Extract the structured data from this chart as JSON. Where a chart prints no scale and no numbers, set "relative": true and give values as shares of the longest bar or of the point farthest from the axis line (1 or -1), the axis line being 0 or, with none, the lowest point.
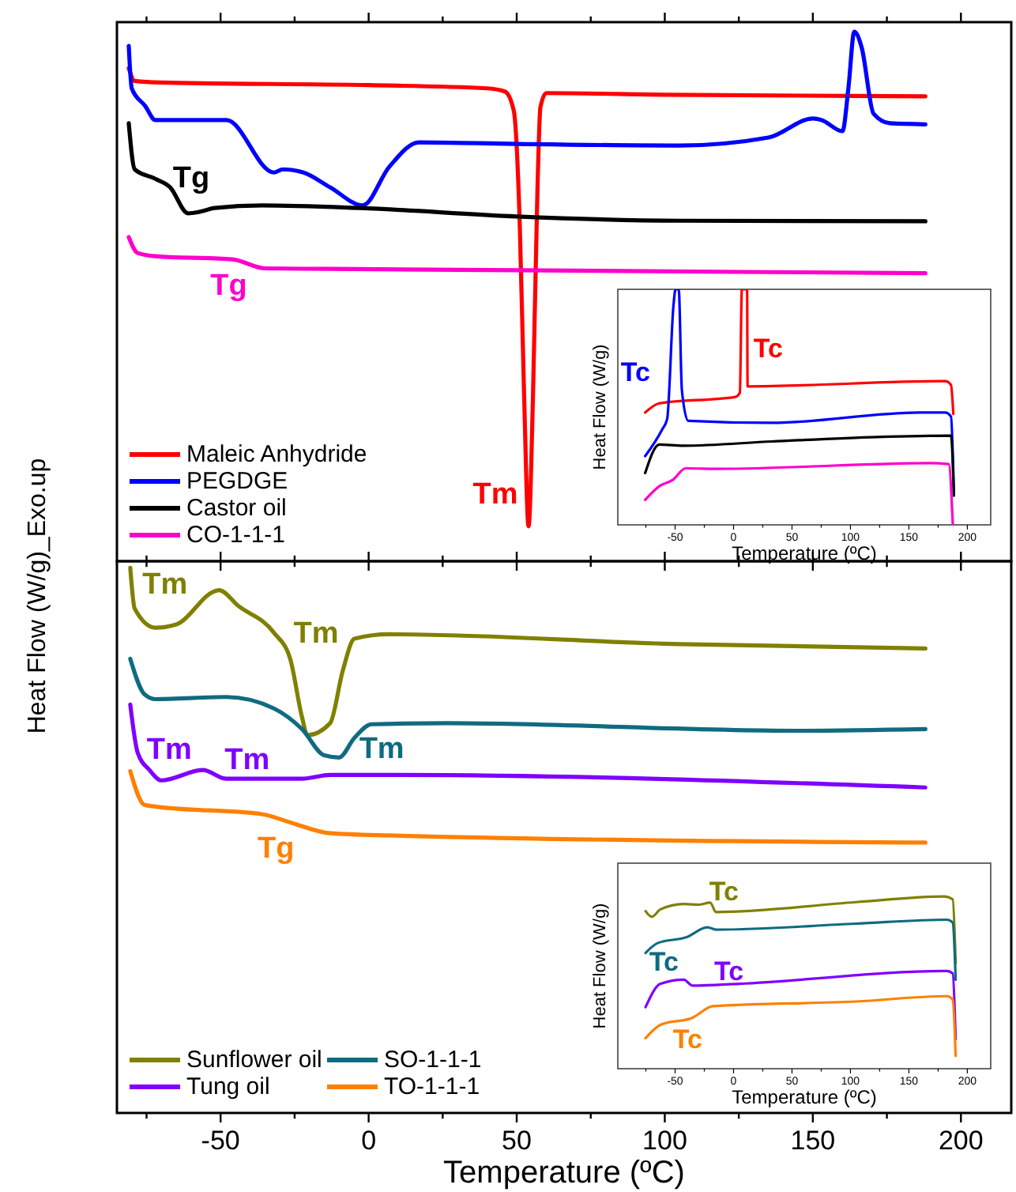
{
  "chart_data": [
    {
      "type": "line",
      "ylabel": "Heat Flow (W/g)_Exo.up",
      "relative": true,
      "xlim": [
        -85,
        217
      ],
      "xticks": [
        -50,
        0,
        50,
        100,
        150,
        200,
        {
          "value": -75,
          "label": null
        },
        {
          "value": -25,
          "label": null
        },
        {
          "value": 25,
          "label": null
        },
        {
          "value": 75,
          "label": null
        },
        {
          "value": 125,
          "label": null
        },
        {
          "value": 175,
          "label": null
        }
      ],
      "tick_labels": false,
      "legend": "bottom left",
      "series": [
        {
          "name": "Maleic Anhydride",
          "color": "#ff0000",
          "x": [
            -81,
            -79,
            -70,
            0,
            40,
            46,
            49,
            51,
            52.5,
            54,
            55.5,
            57,
            58,
            60,
            100,
            188
          ],
          "values": [
            0.931,
            0.907,
            0.904,
            0.899,
            0.893,
            0.887,
            0.851,
            0.642,
            0.313,
            0.066,
            0.313,
            0.701,
            0.857,
            0.884,
            0.881,
            0.878
          ]
        },
        {
          "name": "PEGDGE",
          "color": "#0000ff",
          "x": [
            -81,
            -80,
            -75.5,
            -72,
            -48,
            -32,
            -29,
            -22,
            -13,
            -2,
            7,
            17,
            50,
            105,
            135,
            150,
            153,
            160,
            162,
            164,
            166.5,
            170.5,
            176,
            188
          ],
          "values": [
            0.973,
            0.893,
            0.86,
            0.833,
            0.833,
            0.734,
            0.74,
            0.734,
            0.706,
            0.672,
            0.745,
            0.791,
            0.788,
            0.785,
            0.8,
            0.836,
            0.833,
            0.812,
            0.893,
            1.0,
            0.97,
            0.845,
            0.827,
            0.825
          ]
        },
        {
          "name": "Castor oil",
          "color": "#000000",
          "x": [
            -81,
            -79,
            -72,
            -67,
            -61,
            -57,
            -52,
            -36,
            -3,
            50,
            105,
            188
          ],
          "values": [
            0.827,
            0.74,
            0.722,
            0.706,
            0.657,
            0.66,
            0.667,
            0.672,
            0.667,
            0.651,
            0.643,
            0.642
          ]
        },
        {
          "name": "CO-1-1-1",
          "color": "#ff00cc",
          "x": [
            -81,
            -78,
            -72,
            -46,
            -35,
            -13,
            188
          ],
          "values": [
            0.612,
            0.582,
            0.576,
            0.57,
            0.553,
            0.552,
            0.544
          ]
        }
      ],
      "annotations": [
        {
          "text": "Tg",
          "x": -61,
          "y": 0.657
        },
        {
          "text": "Tg",
          "x": -35,
          "y": 0.553
        },
        {
          "text": "Tm",
          "x": 54,
          "y": 0.066
        }
      ]
    },
    {
      "type": "line",
      "xlabel": "Temperature (ºC)",
      "ylabel": "Heat Flow (W/g)",
      "relative": true,
      "xlim": [
        -99,
        220
      ],
      "xticks": [
        -50,
        0,
        50,
        100,
        150,
        200,
        {
          "value": -75,
          "label": null
        },
        {
          "value": -25,
          "label": null
        },
        {
          "value": 25,
          "label": null
        },
        {
          "value": 75,
          "label": null
        },
        {
          "value": 125,
          "label": null
        },
        {
          "value": 175,
          "label": null
        }
      ],
      "tick_labels": "x",
      "series": [
        {
          "color": "#ff0000",
          "x": [
            -75.6,
            -63.5,
            1.7,
            5.4,
            7.1,
            11.6,
            12,
            181,
            186,
            188
          ],
          "values": [
            0.477,
            0.516,
            0.543,
            0.561,
            1.0,
            1.0,
            0.588,
            0.61,
            0.594,
            0.471
          ]
        },
        {
          "color": "#0000ff",
          "x": [
            -75.6,
            -61.3,
            -56.8,
            -51.4,
            -49.6,
            -46.9,
            -44.2,
            -38.8,
            33,
            159,
            181,
            186,
            188.5
          ],
          "values": [
            0.292,
            0.403,
            0.449,
            0.931,
            1.0,
            1.0,
            0.572,
            0.442,
            0.433,
            0.477,
            0.477,
            0.46,
            0.134
          ]
        },
        {
          "color": "#000000",
          "x": [
            -75.6,
            -63.5,
            -43,
            33,
            123,
            186,
            188.5
          ],
          "values": [
            0.22,
            0.341,
            0.336,
            0.354,
            0.373,
            0.379,
            0.124
          ]
        },
        {
          "color": "#ff00cc",
          "x": [
            -75.6,
            -63.5,
            -52,
            -41,
            -11.7,
            168,
            184,
            187.6
          ],
          "values": [
            0.106,
            0.164,
            0.191,
            0.24,
            0.238,
            0.262,
            0.258,
            0
          ]
        }
      ],
      "annotations": [
        {
          "text": "Tc",
          "x": -51.4,
          "y": 0.931
        },
        {
          "text": "Tc",
          "x": 12,
          "y": 0.588
        }
      ]
    },
    {
      "type": "line",
      "xlabel": "Temperature (ºC)",
      "relative": true,
      "xlim": [
        -85,
        217
      ],
      "xticks": [
        -50,
        0,
        50,
        100,
        150,
        200,
        {
          "value": -75,
          "label": null
        },
        {
          "value": -25,
          "label": null
        },
        {
          "value": 25,
          "label": null
        },
        {
          "value": 75,
          "label": null
        },
        {
          "value": 125,
          "label": null
        },
        {
          "value": 175,
          "label": null
        }
      ],
      "tick_labels": "x",
      "legend": "bottom left",
      "series": [
        {
          "name": "Sunflower oil",
          "color": "#808000",
          "x": [
            -80.5,
            -79,
            -72,
            -65,
            -52,
            -50.5,
            -44,
            -32,
            -26.5,
            -22.5,
            -20.7,
            -13,
            -8.7,
            -4.8,
            7,
            105,
            188
          ],
          "values": [
            1.0,
            0.925,
            0.89,
            0.896,
            0.957,
            0.959,
            0.93,
            0.881,
            0.833,
            0.726,
            0.693,
            0.715,
            0.812,
            0.87,
            0.878,
            0.86,
            0.852
          ]
        },
        {
          "name": "SO-1-1-1",
          "color": "#0f6b80",
          "x": [
            -80.5,
            -75.7,
            -72,
            -48,
            -32,
            -22.5,
            -15,
            -10,
            -4.8,
            1,
            26.6,
            144.7,
            188
          ],
          "values": [
            0.833,
            0.768,
            0.759,
            0.763,
            0.742,
            0.704,
            0.656,
            0.652,
            0.688,
            0.713,
            0.715,
            0.701,
            0.704
          ]
        },
        {
          "name": "Tung oil",
          "color": "#7f00ff",
          "x": [
            -80.5,
            -78,
            -74,
            -70,
            -56,
            -48,
            -22.5,
            -13,
            7,
            188
          ],
          "values": [
            0.749,
            0.661,
            0.629,
            0.61,
            0.629,
            0.613,
            0.613,
            0.62,
            0.62,
            0.597
          ]
        },
        {
          "name": "TO-1-1-1",
          "color": "#ff8000",
          "x": [
            -80.5,
            -75.7,
            -72,
            -36,
            -26.5,
            -13,
            7,
            188
          ],
          "values": [
            0.627,
            0.565,
            0.562,
            0.548,
            0.533,
            0.513,
            0.509,
            0.496
          ]
        }
      ],
      "annotations": [
        {
          "text": "Tm",
          "x": -72,
          "y": 0.89
        },
        {
          "text": "Tm",
          "x": -8.7,
          "y": 0.812
        },
        {
          "text": "Tm",
          "x": -10,
          "y": 0.652
        },
        {
          "text": "Tm",
          "x": -70,
          "y": 0.61
        },
        {
          "text": "Tm",
          "x": -56,
          "y": 0.629
        },
        {
          "text": "Tg",
          "x": -26.5,
          "y": 0.533
        }
      ]
    },
    {
      "type": "line",
      "xlabel": "Temperature (ºC)",
      "ylabel": "Heat Flow (W/g)",
      "relative": true,
      "xlim": [
        -99,
        220
      ],
      "xticks": [
        -50,
        0,
        50,
        100,
        150,
        200,
        {
          "value": -75,
          "label": null
        },
        {
          "value": -25,
          "label": null
        },
        {
          "value": 25,
          "label": null
        },
        {
          "value": 75,
          "label": null
        },
        {
          "value": 125,
          "label": null
        },
        {
          "value": 175,
          "label": null
        }
      ],
      "tick_labels": "x",
      "series": [
        {
          "color": "#808000",
          "x": [
            -75.3,
            -70,
            -62.5,
            -42.6,
            -30,
            -20,
            -15,
            105,
            180,
            187.5,
            190
          ],
          "values": [
            0.915,
            0.882,
            0.925,
            0.956,
            0.952,
            0.964,
            0.909,
            0.967,
            1.0,
            0.983,
            0.61
          ]
        },
        {
          "color": "#0f6b80",
          "x": [
            -75.3,
            -65,
            -40,
            -22.5,
            -15,
            105,
            182.5,
            187.5,
            190
          ],
          "values": [
            0.672,
            0.729,
            0.764,
            0.821,
            0.807,
            0.842,
            0.865,
            0.848,
            0.517
          ]
        },
        {
          "color": "#7f00ff",
          "x": [
            -75.3,
            -62.5,
            -42.6,
            -35,
            5,
            182.5,
            187.5,
            190
          ],
          "values": [
            0.357,
            0.493,
            0.517,
            0.482,
            0.493,
            0.567,
            0.553,
            0.171
          ]
        },
        {
          "color": "#ff8000",
          "x": [
            -75.3,
            -62.5,
            -35,
            -17.6,
            105,
            182.5,
            187.5,
            190
          ],
          "values": [
            0.177,
            0.255,
            0.296,
            0.363,
            0.39,
            0.421,
            0.401,
            0.075
          ]
        }
      ],
      "annotations": [
        {
          "text": "Tc",
          "x": -15,
          "y": 0.909
        },
        {
          "text": "Tc",
          "x": -65,
          "y": 0.729
        },
        {
          "text": "Tc",
          "x": -35,
          "y": 0.482
        },
        {
          "text": "Tc",
          "x": -17.6,
          "y": 0.363
        }
      ]
    }
  ]
}
